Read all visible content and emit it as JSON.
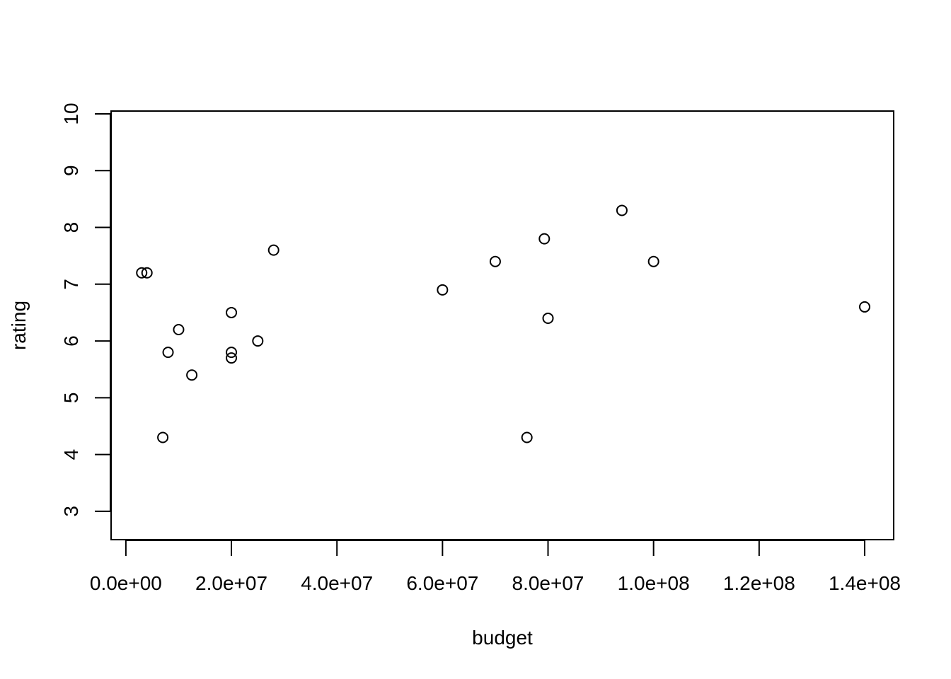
{
  "chart_data": {
    "type": "scatter",
    "title": "",
    "xlabel": "budget",
    "ylabel": "rating",
    "xlim": [
      -2800000,
      145500000
    ],
    "ylim": [
      2.5,
      10.05
    ],
    "x_ticks": [
      0,
      20000000,
      40000000,
      60000000,
      80000000,
      100000000,
      120000000,
      140000000
    ],
    "x_tick_labels": [
      "0.0e+00",
      "2.0e+07",
      "4.0e+07",
      "6.0e+07",
      "8.0e+07",
      "1.0e+08",
      "1.2e+08",
      "1.4e+08"
    ],
    "y_ticks": [
      3,
      4,
      5,
      6,
      7,
      8,
      9,
      10
    ],
    "y_tick_labels": [
      "3",
      "4",
      "5",
      "6",
      "7",
      "8",
      "9",
      "10"
    ],
    "grid": false,
    "legend": "none",
    "marker": "open-circle",
    "points": [
      {
        "x": 3000000,
        "y": 7.2
      },
      {
        "x": 4000000,
        "y": 7.2
      },
      {
        "x": 7000000,
        "y": 4.3
      },
      {
        "x": 8000000,
        "y": 5.8
      },
      {
        "x": 10000000,
        "y": 6.2
      },
      {
        "x": 12500000,
        "y": 5.4
      },
      {
        "x": 20000000,
        "y": 6.5
      },
      {
        "x": 20000000,
        "y": 5.8
      },
      {
        "x": 20000000,
        "y": 5.7
      },
      {
        "x": 25000000,
        "y": 6.0
      },
      {
        "x": 28000000,
        "y": 7.6
      },
      {
        "x": 60000000,
        "y": 6.9
      },
      {
        "x": 70000000,
        "y": 7.4
      },
      {
        "x": 76000000,
        "y": 4.3
      },
      {
        "x": 79300000,
        "y": 7.8
      },
      {
        "x": 80000000,
        "y": 6.4
      },
      {
        "x": 94000000,
        "y": 8.3
      },
      {
        "x": 100000000,
        "y": 7.4
      },
      {
        "x": 140000000,
        "y": 6.6
      }
    ]
  }
}
